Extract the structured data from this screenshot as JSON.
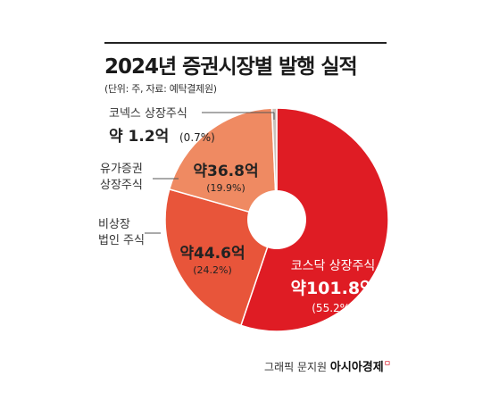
{
  "title": "2024년 증권시장별 발행 실적",
  "subtitle": "(단위: 주, 자료: 예탁결제원)",
  "credit": {
    "prefix": "그래픽 문지원",
    "brand": "아시아경제",
    "mark": "ㅁ"
  },
  "colors": {
    "kosdaq": "#df1c24",
    "unlisted": "#e8553a",
    "kospi": "#ef8a62",
    "konex": "#c9c2bb",
    "text_light": "#ffffff",
    "text_dark": "#222222"
  },
  "chart_data": {
    "type": "pie",
    "style": "donut",
    "title": "2024년 증권시장별 발행 실적",
    "unit": "주",
    "slices": [
      {
        "label": "코스닥 상장주식",
        "amount": "약101.8억",
        "pct": "(55.2%)",
        "value": 55.2,
        "color": "#df1c24"
      },
      {
        "label": "비상장 법인 주식",
        "amount": "약44.6억",
        "pct": "(24.2%)",
        "value": 24.2,
        "color": "#e8553a"
      },
      {
        "label": "유가증권 상장주식",
        "amount": "약36.8억",
        "pct": "(19.9%)",
        "value": 19.9,
        "color": "#ef8a62"
      },
      {
        "label": "코넥스 상장주식",
        "amount": "약 1.2억",
        "pct": "(0.7%)",
        "value": 0.7,
        "color": "#c9c2bb"
      }
    ],
    "external_labels": {
      "konex": [
        "코넥스 상장주식"
      ],
      "kospi": [
        "유가증권",
        "상장주식"
      ],
      "unlisted": [
        "비상장",
        "법인 주식"
      ]
    }
  }
}
